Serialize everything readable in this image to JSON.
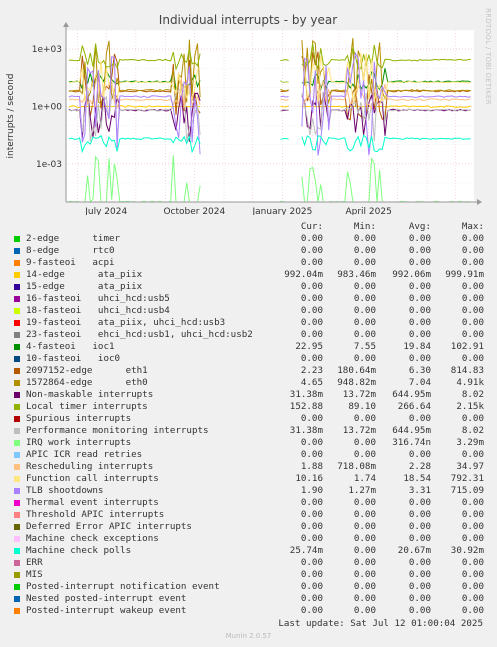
{
  "chart_data": {
    "type": "line",
    "title": "Individual interrupts - by year",
    "ylabel": "interrupts / second",
    "yscale": "log",
    "yticks": [
      {
        "label": "1e+03",
        "value": 1000
      },
      {
        "label": "1e+00",
        "value": 1
      },
      {
        "label": "1e-03",
        "value": 0.001
      }
    ],
    "ylim": [
      1e-05,
      10000
    ],
    "xlim": [
      "2024-05-20",
      "2025-07-20"
    ],
    "xticks": [
      {
        "label": "July 2024",
        "date": "2024-07-01"
      },
      {
        "label": "October 2024",
        "date": "2024-10-01"
      },
      {
        "label": "January 2025",
        "date": "2025-01-01"
      },
      {
        "label": "April 2025",
        "date": "2025-04-01"
      }
    ],
    "gaps": [
      [
        "2024-10-08",
        "2024-12-28"
      ],
      [
        "2025-01-08",
        "2025-01-20"
      ]
    ],
    "columns": [
      "Cur:",
      "Min:",
      "Avg:",
      "Max:"
    ],
    "series": [
      {
        "name": "2-edge      timer",
        "color": "#00cc00",
        "cur": "0.00",
        "min": "0.00",
        "avg": "0.00",
        "max": "0.00"
      },
      {
        "name": "8-edge      rtc0",
        "color": "#0066b3",
        "cur": "0.00",
        "min": "0.00",
        "avg": "0.00",
        "max": "0.00"
      },
      {
        "name": "9-fasteoi   acpi",
        "color": "#ff8000",
        "cur": "0.00",
        "min": "0.00",
        "avg": "0.00",
        "max": "0.00"
      },
      {
        "name": "14-edge      ata_piix",
        "color": "#ffcc00",
        "cur": "992.04m",
        "min": "983.46m",
        "avg": "992.06m",
        "max": "999.91m"
      },
      {
        "name": "15-edge      ata_piix",
        "color": "#330099",
        "cur": "0.00",
        "min": "0.00",
        "avg": "0.00",
        "max": "0.00"
      },
      {
        "name": "16-fasteoi   uhci_hcd:usb5",
        "color": "#990099",
        "cur": "0.00",
        "min": "0.00",
        "avg": "0.00",
        "max": "0.00"
      },
      {
        "name": "18-fasteoi   uhci_hcd:usb4",
        "color": "#ccff00",
        "cur": "0.00",
        "min": "0.00",
        "avg": "0.00",
        "max": "0.00"
      },
      {
        "name": "19-fasteoi   ata_piix, uhci_hcd:usb3",
        "color": "#ff0000",
        "cur": "0.00",
        "min": "0.00",
        "avg": "0.00",
        "max": "0.00"
      },
      {
        "name": "23-fasteoi   ehci_hcd:usb1, uhci_hcd:usb2",
        "color": "#808080",
        "cur": "0.00",
        "min": "0.00",
        "avg": "0.00",
        "max": "0.00"
      },
      {
        "name": "4-fasteoi   ioc1",
        "color": "#008f00",
        "cur": "22.95",
        "min": "7.55",
        "avg": "19.84",
        "max": "102.91"
      },
      {
        "name": "10-fasteoi   ioc0",
        "color": "#00487d",
        "cur": "0.00",
        "min": "0.00",
        "avg": "0.00",
        "max": "0.00"
      },
      {
        "name": "2097152-edge      eth1",
        "color": "#b35a00",
        "cur": "2.23",
        "min": "180.64m",
        "avg": "6.30",
        "max": "814.83"
      },
      {
        "name": "1572864-edge      eth0",
        "color": "#b38f00",
        "cur": "4.65",
        "min": "948.82m",
        "avg": "7.04",
        "max": "4.91k"
      },
      {
        "name": "Non-maskable interrupts",
        "color": "#6b006b",
        "cur": "31.38m",
        "min": "13.72m",
        "avg": "644.95m",
        "max": "8.02"
      },
      {
        "name": "Local timer interrupts",
        "color": "#8fb300",
        "cur": "152.88",
        "min": "89.10",
        "avg": "266.64",
        "max": "2.15k"
      },
      {
        "name": "Spurious interrupts",
        "color": "#b30000",
        "cur": "0.00",
        "min": "0.00",
        "avg": "0.00",
        "max": "0.00"
      },
      {
        "name": "Performance monitoring interrupts",
        "color": "#bebebe",
        "cur": "31.38m",
        "min": "13.72m",
        "avg": "644.95m",
        "max": "8.02"
      },
      {
        "name": "IRQ work interrupts",
        "color": "#80ff80",
        "cur": "0.00",
        "min": "0.00",
        "avg": "316.74n",
        "max": "3.29m"
      },
      {
        "name": "APIC ICR read retries",
        "color": "#80c9ff",
        "cur": "0.00",
        "min": "0.00",
        "avg": "0.00",
        "max": "0.00"
      },
      {
        "name": "Rescheduling interrupts",
        "color": "#ffc080",
        "cur": "1.88",
        "min": "718.08m",
        "avg": "2.28",
        "max": "34.97"
      },
      {
        "name": "Function call interrupts",
        "color": "#ffe680",
        "cur": "10.16",
        "min": "1.74",
        "avg": "18.54",
        "max": "792.31"
      },
      {
        "name": "TLB shootdowns",
        "color": "#aa80ff",
        "cur": "1.90",
        "min": "1.27m",
        "avg": "3.31",
        "max": "715.09"
      },
      {
        "name": "Thermal event interrupts",
        "color": "#ee00cc",
        "cur": "0.00",
        "min": "0.00",
        "avg": "0.00",
        "max": "0.00"
      },
      {
        "name": "Threshold APIC interrupts",
        "color": "#ff8080",
        "cur": "0.00",
        "min": "0.00",
        "avg": "0.00",
        "max": "0.00"
      },
      {
        "name": "Deferred Error APIC interrupts",
        "color": "#666600",
        "cur": "0.00",
        "min": "0.00",
        "avg": "0.00",
        "max": "0.00"
      },
      {
        "name": "Machine check exceptions",
        "color": "#ffbfff",
        "cur": "0.00",
        "min": "0.00",
        "avg": "0.00",
        "max": "0.00"
      },
      {
        "name": "Machine check polls",
        "color": "#00ffcc",
        "cur": "25.74m",
        "min": "0.00",
        "avg": "20.67m",
        "max": "30.92m"
      },
      {
        "name": "ERR",
        "color": "#cc6699",
        "cur": "0.00",
        "min": "0.00",
        "avg": "0.00",
        "max": "0.00"
      },
      {
        "name": "MIS",
        "color": "#999900",
        "cur": "0.00",
        "min": "0.00",
        "avg": "0.00",
        "max": "0.00"
      },
      {
        "name": "Posted-interrupt notification event",
        "color": "#00cc00",
        "cur": "0.00",
        "min": "0.00",
        "avg": "0.00",
        "max": "0.00"
      },
      {
        "name": "Nested posted-interrupt event",
        "color": "#0066b3",
        "cur": "0.00",
        "min": "0.00",
        "avg": "0.00",
        "max": "0.00"
      },
      {
        "name": "Posted-interrupt wakeup event",
        "color": "#ff8000",
        "cur": "0.00",
        "min": "0.00",
        "avg": "0.00",
        "max": "0.00"
      }
    ]
  },
  "footer": {
    "last_update": "Last update: Sat Jul 12 01:00:04 2025",
    "munin": "Munin 2.0.57",
    "side_label": "RRDTOOL / TOBI OETIKER"
  }
}
